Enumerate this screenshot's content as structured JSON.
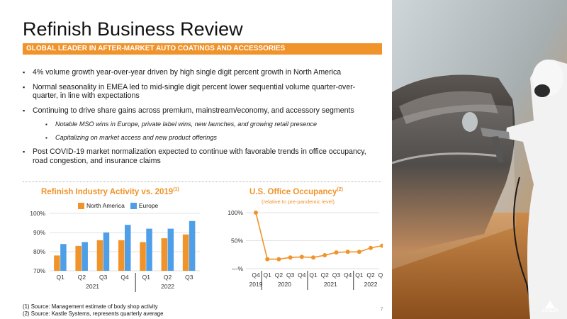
{
  "title": "Refinish Business Review",
  "banner": "GLOBAL LEADER IN AFTER-MARKET AUTO COATINGS AND ACCESSORIES",
  "bullets": [
    "4% volume growth year-over-year driven by high single digit percent growth in North America",
    "Normal seasonality in EMEA led to mid-single digit percent lower sequential volume quarter-over-quarter, in line with expectations",
    "Continuing to drive share gains across premium, mainstream/economy, and accessory segments",
    "Post COVID-19 market normalization expected to continue with favorable trends in office occupancy, road congestion, and insurance claims"
  ],
  "sub_bullets": [
    "Notable MSO wins in Europe, private label wins, new launches, and growing retail presence",
    "Capitalizing on market access and new product offerings"
  ],
  "colors": {
    "accent": "#f0932b",
    "north_america": "#f0932b",
    "europe": "#4f9ee8",
    "occupancy_line": "#f0932b"
  },
  "chart_data": [
    {
      "type": "bar",
      "title": "Refinish Industry Activity vs. 2019",
      "title_footnote": "(1)",
      "categories": [
        "Q1",
        "Q2",
        "Q3",
        "Q4",
        "Q1",
        "Q2",
        "Q3"
      ],
      "groups": [
        {
          "label": "2021",
          "count": 4
        },
        {
          "label": "2022",
          "count": 3
        }
      ],
      "series": [
        {
          "name": "North America",
          "values": [
            78,
            83,
            86,
            86,
            85,
            87,
            89
          ]
        },
        {
          "name": "Europe",
          "values": [
            84,
            85,
            90,
            94,
            92,
            92,
            96
          ]
        }
      ],
      "yticks": [
        "70%",
        "80%",
        "90%",
        "100%"
      ],
      "ylim": [
        70,
        100
      ],
      "legend": "top",
      "grid": true
    },
    {
      "type": "line",
      "title": "U.S. Office Occupancy",
      "title_footnote": "(2)",
      "subtitle": "(relative to pre-pandemic level)",
      "categories": [
        "Q4",
        "Q1",
        "Q2",
        "Q3",
        "Q4",
        "Q1",
        "Q2",
        "Q3",
        "Q4",
        "Q1",
        "Q2",
        "Q3"
      ],
      "groups": [
        {
          "label": "2019",
          "count": 1
        },
        {
          "label": "2020",
          "count": 4
        },
        {
          "label": "2021",
          "count": 4
        },
        {
          "label": "2022",
          "count": 3
        }
      ],
      "series": [
        {
          "values": [
            100,
            17,
            17,
            20,
            21,
            20,
            24,
            29,
            30,
            30,
            37,
            41
          ]
        }
      ],
      "yticks": [
        "—%",
        "50%",
        "100%"
      ],
      "ylim": [
        0,
        100
      ],
      "legend": "none",
      "grid": true
    }
  ],
  "footnotes": [
    "(1) Source: Management estimate of body shop activity",
    "(2) Source: Kastle Systems, represents quarterly average"
  ],
  "page_number": "7",
  "logo_text": "AXALTA",
  "photo_description_icon": "spray-painter-photo"
}
